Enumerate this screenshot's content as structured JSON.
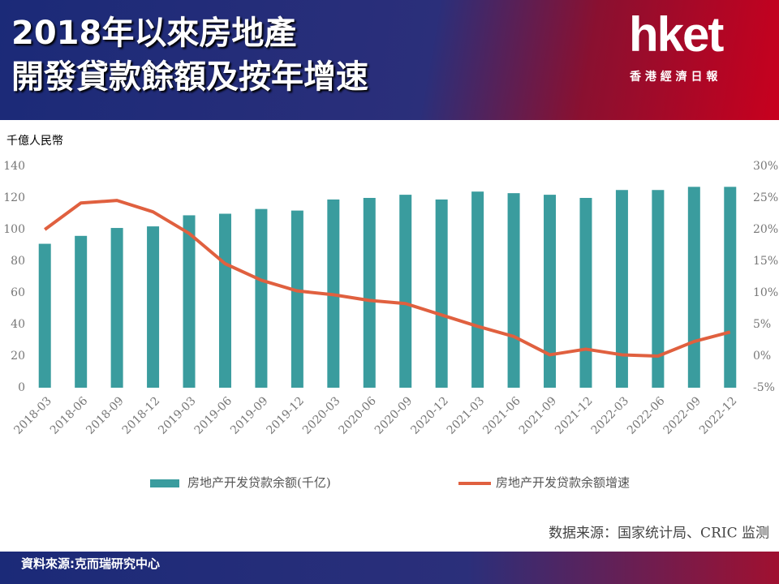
{
  "header": {
    "title_lines": [
      "2018年以來房地產",
      "開發貸款餘額及按年增速"
    ],
    "logo": "hket",
    "logo_subtitle": "香 港 經 濟 日 報"
  },
  "chart_data": {
    "type": "combo",
    "y_axis_label": "千億人民幣",
    "categories": [
      "2018-03",
      "2018-06",
      "2018-09",
      "2018-12",
      "2019-03",
      "2019-06",
      "2019-09",
      "2019-12",
      "2020-03",
      "2020-06",
      "2020-09",
      "2020-12",
      "2021-03",
      "2021-06",
      "2021-09",
      "2021-12",
      "2022-03",
      "2022-06",
      "2022-09",
      "2022-12"
    ],
    "series": [
      {
        "name": "房地产开发贷款余额(千亿)",
        "type": "bar",
        "color": "#3a9c9e",
        "values": [
          91,
          96,
          101,
          102,
          109,
          110,
          113,
          112,
          119,
          120,
          122,
          119,
          124,
          123,
          122,
          120,
          125,
          125,
          127,
          127
        ]
      },
      {
        "name": "房地产开发贷款余额增速",
        "type": "line",
        "axis": "y2",
        "color": "#e0603f",
        "values": [
          20,
          24.2,
          24.6,
          22.8,
          19.4,
          14.6,
          12,
          10.3,
          9.7,
          8.8,
          8.3,
          6.5,
          4.7,
          3.1,
          0.2,
          1.1,
          0.2,
          0,
          2.3,
          3.8
        ]
      }
    ],
    "ylim": [
      0,
      140
    ],
    "yticks": [
      0,
      20,
      40,
      60,
      80,
      100,
      120,
      140
    ],
    "y2lim": [
      -5,
      30
    ],
    "y2ticks": [
      {
        "value": -5,
        "label": "-5%"
      },
      {
        "value": 0,
        "label": "0%"
      },
      {
        "value": 5,
        "label": "5%"
      },
      {
        "value": 10,
        "label": "10%"
      },
      {
        "value": 15,
        "label": "15%"
      },
      {
        "value": 20,
        "label": "20%"
      },
      {
        "value": 25,
        "label": "25%"
      },
      {
        "value": 30,
        "label": "30%"
      }
    ],
    "grid": false,
    "legend": "bottom",
    "source": "数据来源：国家统计局、CRIC 监测"
  },
  "footer": {
    "source": "資料來源:克而瑞研究中心"
  }
}
